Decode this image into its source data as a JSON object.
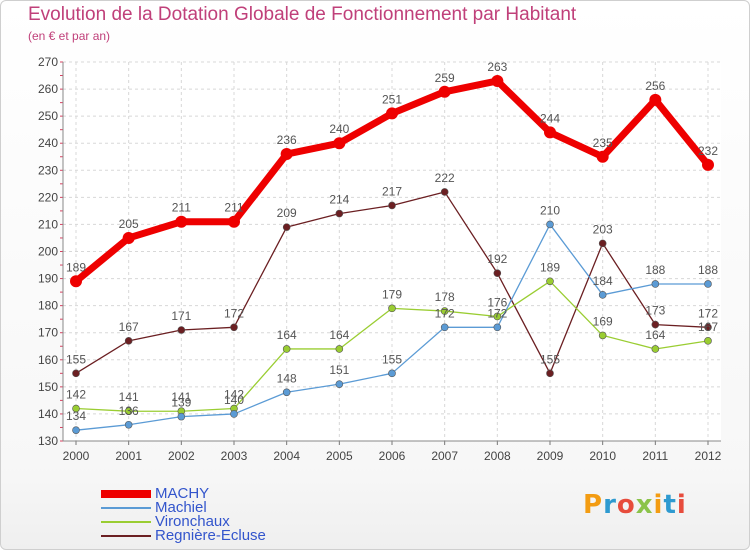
{
  "header": {
    "title": "Evolution de la Dotation Globale de Fonctionnement par Habitant",
    "subtitle": "(en € et par an)"
  },
  "chart_data": {
    "type": "line",
    "x": [
      "2000",
      "2001",
      "2002",
      "2003",
      "2004",
      "2005",
      "2006",
      "2007",
      "2008",
      "2009",
      "2010",
      "2011",
      "2012"
    ],
    "ylim": [
      130,
      270
    ],
    "yticks": [
      130,
      140,
      150,
      160,
      170,
      180,
      190,
      200,
      210,
      220,
      230,
      240,
      250,
      260,
      270
    ],
    "grid": true,
    "legend_position": "bottom-left",
    "series": [
      {
        "name": "MACHY",
        "color": "#ee0000",
        "values": [
          189,
          205,
          211,
          211,
          236,
          240,
          251,
          259,
          263,
          244,
          235,
          256,
          232
        ]
      },
      {
        "name": "Machiel",
        "color": "#5b9bd5",
        "values": [
          134,
          136,
          139,
          140,
          148,
          151,
          155,
          172,
          172,
          210,
          184,
          188,
          188
        ]
      },
      {
        "name": "Vironchaux",
        "color": "#9acd32",
        "values": [
          142,
          141,
          141,
          142,
          164,
          164,
          179,
          178,
          176,
          189,
          169,
          164,
          167
        ]
      },
      {
        "name": "Regnière-Ecluse",
        "color": "#6b1f22",
        "values": [
          155,
          167,
          171,
          172,
          209,
          214,
          217,
          222,
          192,
          155,
          203,
          173,
          172
        ]
      }
    ]
  },
  "logo": {
    "text": "Proxiti",
    "colors": [
      "#f39c12",
      "#2e9ad0",
      "#e74c3c",
      "#8bc34a",
      "#f39c12",
      "#2e9ad0",
      "#e74c3c"
    ]
  }
}
